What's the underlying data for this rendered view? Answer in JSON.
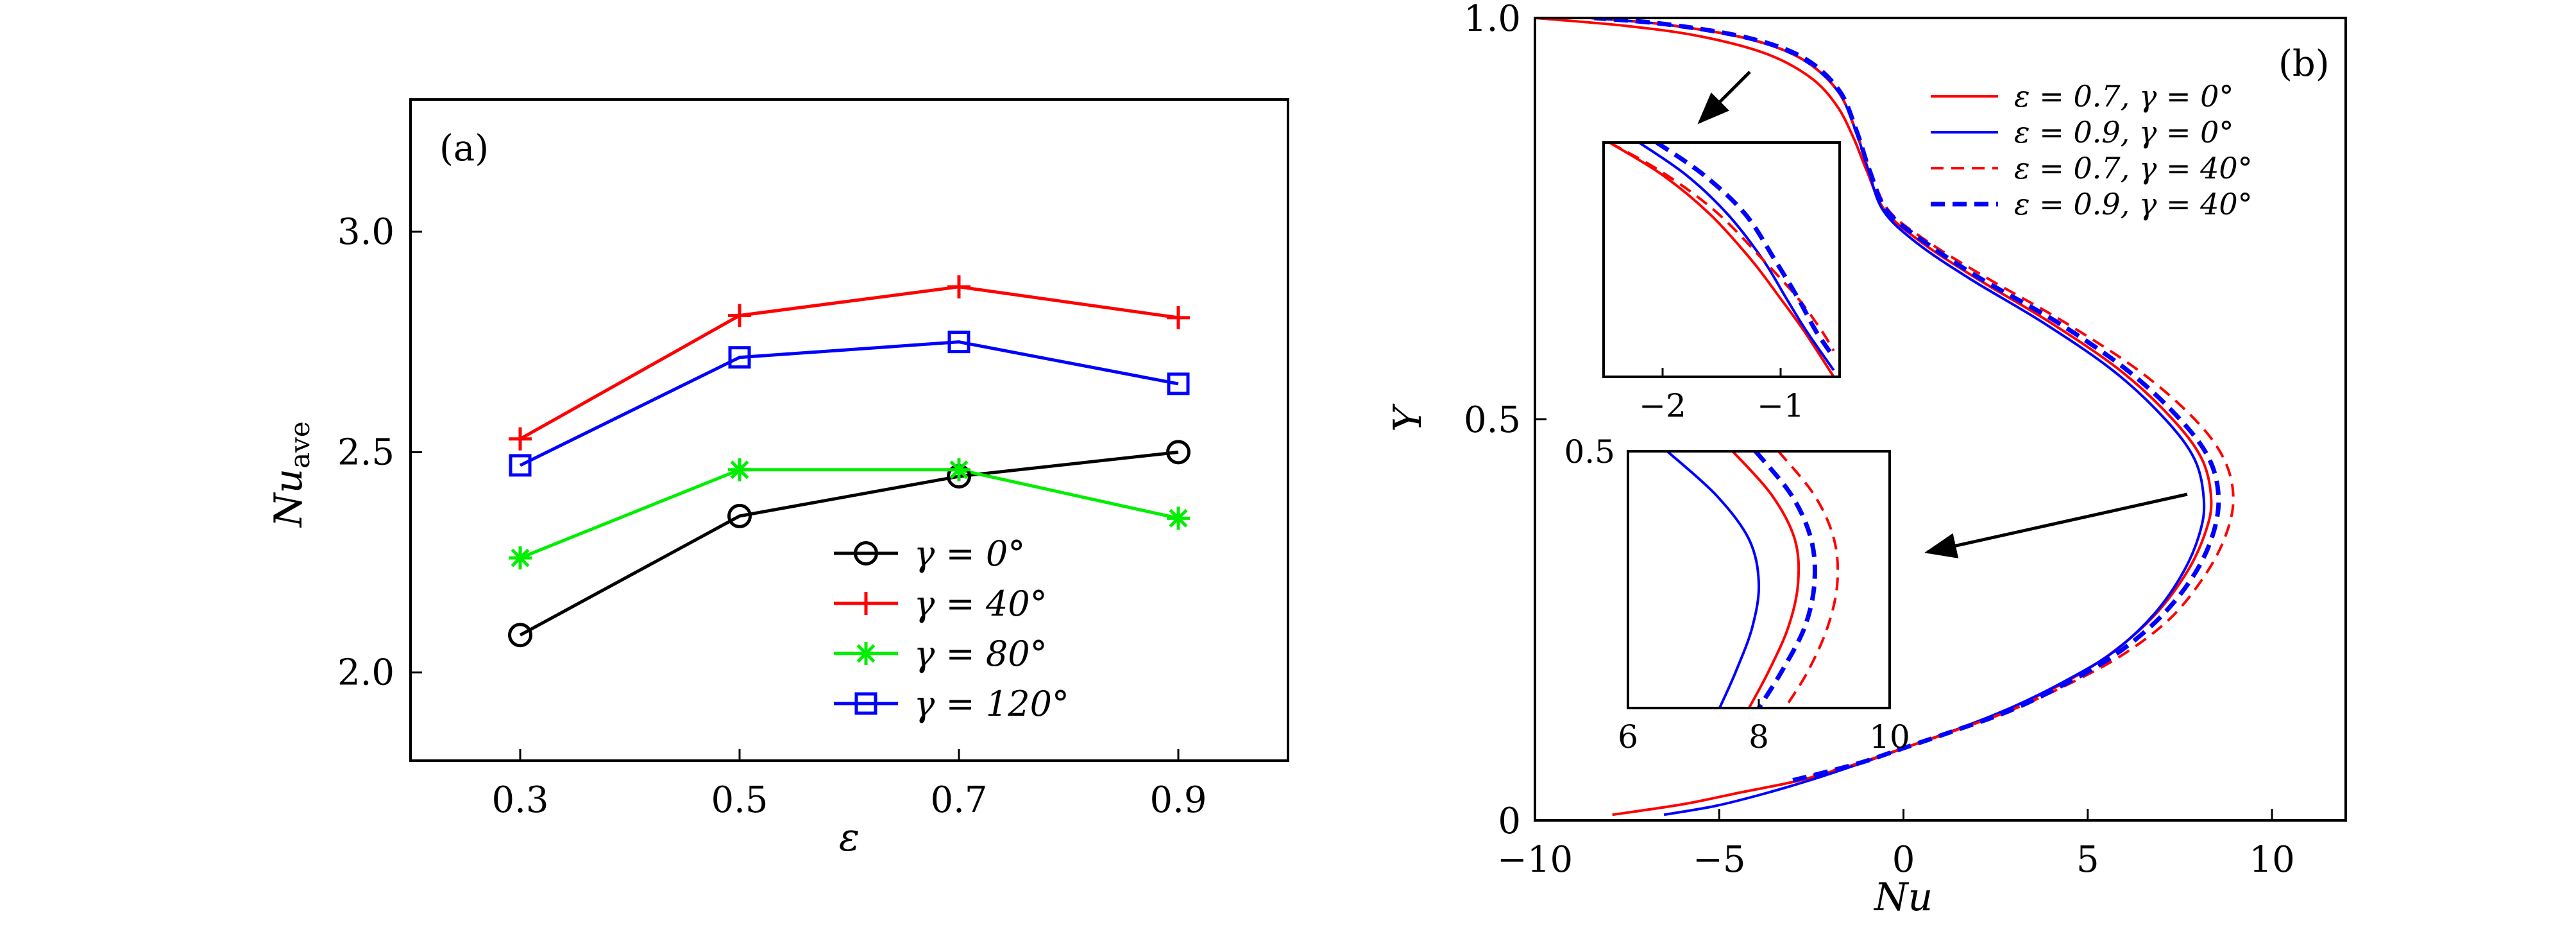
{
  "chart_data": [
    {
      "type": "line",
      "panel_label": "(a)",
      "xlabel": "ε",
      "ylabel": {
        "main": "Nu",
        "sub": "ave"
      },
      "x": [
        0.3,
        0.5,
        0.7,
        0.9
      ],
      "x_ticks": [
        "0.3",
        "0.5",
        "0.7",
        "0.9"
      ],
      "y_ticks": [
        "2.0",
        "2.5",
        "3.0"
      ],
      "xlim": [
        0.2,
        1.0
      ],
      "ylim": [
        1.8,
        3.3
      ],
      "grid": false,
      "legend_position": "lower-right",
      "series": [
        {
          "name": "γ = 0°",
          "values": [
            2.085,
            2.355,
            2.445,
            2.5
          ],
          "color": "#000000",
          "marker": "circle"
        },
        {
          "name": "γ = 40°",
          "values": [
            2.53,
            2.81,
            2.875,
            2.805
          ],
          "color": "#ff0000",
          "marker": "plus"
        },
        {
          "name": "γ = 80°",
          "values": [
            2.26,
            2.46,
            2.46,
            2.35
          ],
          "color": "#00ee00",
          "marker": "asterisk"
        },
        {
          "name": "γ = 120°",
          "values": [
            2.47,
            2.715,
            2.75,
            2.655
          ],
          "color": "#0000ff",
          "marker": "square"
        }
      ]
    },
    {
      "type": "line",
      "panel_label": "(b)",
      "xlabel": "Nu",
      "ylabel": "Y",
      "xlim": [
        -10,
        12
      ],
      "ylim": [
        0,
        1
      ],
      "x_ticks": [
        "−10",
        "−5",
        "0",
        "5",
        "10"
      ],
      "y_ticks": [
        "0",
        "0.5",
        "1.0"
      ],
      "grid": false,
      "legend_position": "top-right",
      "series": [
        {
          "name": "ε = 0.7, γ = 0°",
          "color": "#ff0000",
          "dash": "solid",
          "points": [
            [
              -7.9,
              0.007
            ],
            [
              -6.0,
              0.02
            ],
            [
              -4.4,
              0.035
            ],
            [
              -2.8,
              0.05
            ],
            [
              -1.3,
              0.07
            ],
            [
              0.0,
              0.09
            ],
            [
              1.4,
              0.112
            ],
            [
              2.8,
              0.138
            ],
            [
              4.3,
              0.17
            ],
            [
              5.6,
              0.207
            ],
            [
              6.8,
              0.255
            ],
            [
              7.7,
              0.31
            ],
            [
              8.2,
              0.36
            ],
            [
              8.35,
              0.4
            ],
            [
              8.1,
              0.45
            ],
            [
              7.3,
              0.5
            ],
            [
              5.9,
              0.56
            ],
            [
              4.0,
              0.62
            ],
            [
              2.0,
              0.675
            ],
            [
              0.5,
              0.72
            ],
            [
              -0.5,
              0.76
            ],
            [
              -1.0,
              0.81
            ],
            [
              -1.35,
              0.85
            ],
            [
              -1.8,
              0.89
            ],
            [
              -2.5,
              0.925
            ],
            [
              -3.7,
              0.955
            ],
            [
              -5.5,
              0.977
            ],
            [
              -7.5,
              0.99
            ],
            [
              -10,
              1.0
            ]
          ]
        },
        {
          "name": "ε = 0.9, γ = 0°",
          "color": "#0000ff",
          "dash": "solid",
          "points": [
            [
              -6.5,
              0.007
            ],
            [
              -5.1,
              0.018
            ],
            [
              -3.8,
              0.033
            ],
            [
              -2.4,
              0.052
            ],
            [
              -1.1,
              0.072
            ],
            [
              0.2,
              0.093
            ],
            [
              1.6,
              0.116
            ],
            [
              3.0,
              0.142
            ],
            [
              4.4,
              0.174
            ],
            [
              5.7,
              0.21
            ],
            [
              6.8,
              0.257
            ],
            [
              7.6,
              0.31
            ],
            [
              8.05,
              0.36
            ],
            [
              8.15,
              0.4
            ],
            [
              7.9,
              0.45
            ],
            [
              7.1,
              0.5
            ],
            [
              5.7,
              0.56
            ],
            [
              3.8,
              0.62
            ],
            [
              1.8,
              0.675
            ],
            [
              0.35,
              0.72
            ],
            [
              -0.55,
              0.76
            ],
            [
              -0.95,
              0.81
            ],
            [
              -1.3,
              0.86
            ],
            [
              -1.8,
              0.91
            ],
            [
              -2.8,
              0.95
            ],
            [
              -4.3,
              0.975
            ],
            [
              -6.5,
              0.992
            ],
            [
              -8.5,
              1.0
            ]
          ]
        },
        {
          "name": "ε = 0.7, γ = 40°",
          "color": "#ff0000",
          "dash": "dashed",
          "points": [
            [
              -3.0,
              0.05
            ],
            [
              -1.3,
              0.07
            ],
            [
              0.0,
              0.09
            ],
            [
              1.4,
              0.112
            ],
            [
              2.9,
              0.137
            ],
            [
              4.4,
              0.168
            ],
            [
              5.9,
              0.205
            ],
            [
              7.2,
              0.25
            ],
            [
              8.1,
              0.3
            ],
            [
              8.7,
              0.35
            ],
            [
              8.95,
              0.4
            ],
            [
              8.7,
              0.45
            ],
            [
              7.9,
              0.5
            ],
            [
              6.4,
              0.56
            ],
            [
              4.4,
              0.62
            ],
            [
              2.3,
              0.675
            ],
            [
              0.7,
              0.72
            ],
            [
              -0.4,
              0.76
            ],
            [
              -0.9,
              0.81
            ],
            [
              -1.3,
              0.86
            ],
            [
              -1.8,
              0.91
            ],
            [
              -2.8,
              0.95
            ],
            [
              -4.3,
              0.975
            ],
            [
              -6.5,
              0.992
            ],
            [
              -8.5,
              1.0
            ]
          ]
        },
        {
          "name": "ε = 0.9, γ = 40°",
          "color": "#0000ff",
          "dash": "dashed",
          "points": [
            [
              -3.0,
              0.05
            ],
            [
              -1.3,
              0.07
            ],
            [
              0.0,
              0.09
            ],
            [
              1.4,
              0.112
            ],
            [
              2.9,
              0.137
            ],
            [
              4.3,
              0.168
            ],
            [
              5.7,
              0.205
            ],
            [
              6.9,
              0.25
            ],
            [
              7.8,
              0.3
            ],
            [
              8.35,
              0.35
            ],
            [
              8.55,
              0.4
            ],
            [
              8.3,
              0.45
            ],
            [
              7.5,
              0.5
            ],
            [
              6.1,
              0.56
            ],
            [
              4.2,
              0.62
            ],
            [
              2.1,
              0.675
            ],
            [
              0.6,
              0.72
            ],
            [
              -0.45,
              0.76
            ],
            [
              -0.92,
              0.81
            ],
            [
              -1.28,
              0.86
            ],
            [
              -1.75,
              0.91
            ],
            [
              -2.7,
              0.95
            ],
            [
              -4.2,
              0.975
            ],
            [
              -6.4,
              0.992
            ],
            [
              -8.4,
              1.0
            ]
          ]
        }
      ],
      "insets": [
        {
          "xlim": [
            -2.5,
            -0.5
          ],
          "ylim": [
            0.72,
            0.9
          ],
          "x_ticks": [
            "−2",
            "−1"
          ],
          "series_curves": {
            "ε = 0.7, γ = 0°": [
              [
                -2.45,
                0.9
              ],
              [
                -2.0,
                0.875
              ],
              [
                -1.6,
                0.845
              ],
              [
                -1.25,
                0.81
              ],
              [
                -1.0,
                0.78
              ],
              [
                -0.8,
                0.755
              ],
              [
                -0.55,
                0.72
              ]
            ],
            "ε = 0.9, γ = 0°": [
              [
                -2.2,
                0.9
              ],
              [
                -1.8,
                0.875
              ],
              [
                -1.45,
                0.845
              ],
              [
                -1.15,
                0.81
              ],
              [
                -0.95,
                0.78
              ],
              [
                -0.78,
                0.755
              ],
              [
                -0.55,
                0.725
              ]
            ],
            "ε = 0.7, γ = 40°": [
              [
                -2.45,
                0.9
              ],
              [
                -2.0,
                0.877
              ],
              [
                -1.55,
                0.847
              ],
              [
                -1.15,
                0.81
              ],
              [
                -0.85,
                0.78
              ],
              [
                -0.65,
                0.755
              ],
              [
                -0.55,
                0.74
              ]
            ],
            "ε = 0.9, γ = 40°": [
              [
                -2.05,
                0.9
              ],
              [
                -1.65,
                0.875
              ],
              [
                -1.3,
                0.845
              ],
              [
                -1.05,
                0.81
              ],
              [
                -0.85,
                0.78
              ],
              [
                -0.7,
                0.755
              ],
              [
                -0.55,
                0.735
              ]
            ]
          }
        },
        {
          "xlim": [
            6,
            10
          ],
          "ylim": [
            0.15,
            0.5
          ],
          "x_ticks": [
            "6",
            "8",
            "10"
          ],
          "y_ticks": [
            "0.5"
          ],
          "series_curves": {
            "ε = 0.7, γ = 0°": [
              [
                7.6,
                0.5
              ],
              [
                8.2,
                0.44
              ],
              [
                8.55,
                0.38
              ],
              [
                8.6,
                0.32
              ],
              [
                8.45,
                0.26
              ],
              [
                8.15,
                0.2
              ],
              [
                7.85,
                0.15
              ]
            ],
            "ε = 0.9, γ = 0°": [
              [
                6.6,
                0.5
              ],
              [
                7.35,
                0.44
              ],
              [
                7.85,
                0.38
              ],
              [
                8.0,
                0.32
              ],
              [
                7.9,
                0.26
              ],
              [
                7.65,
                0.2
              ],
              [
                7.4,
                0.15
              ]
            ],
            "ε = 0.7, γ = 40°": [
              [
                8.3,
                0.5
              ],
              [
                8.85,
                0.44
              ],
              [
                9.15,
                0.38
              ],
              [
                9.2,
                0.32
              ],
              [
                9.05,
                0.26
              ],
              [
                8.75,
                0.2
              ],
              [
                8.4,
                0.15
              ]
            ],
            "ε = 0.9, γ = 40°": [
              [
                7.95,
                0.5
              ],
              [
                8.5,
                0.44
              ],
              [
                8.8,
                0.38
              ],
              [
                8.85,
                0.32
              ],
              [
                8.7,
                0.26
              ],
              [
                8.35,
                0.2
              ],
              [
                8.0,
                0.15
              ]
            ]
          }
        }
      ]
    }
  ]
}
